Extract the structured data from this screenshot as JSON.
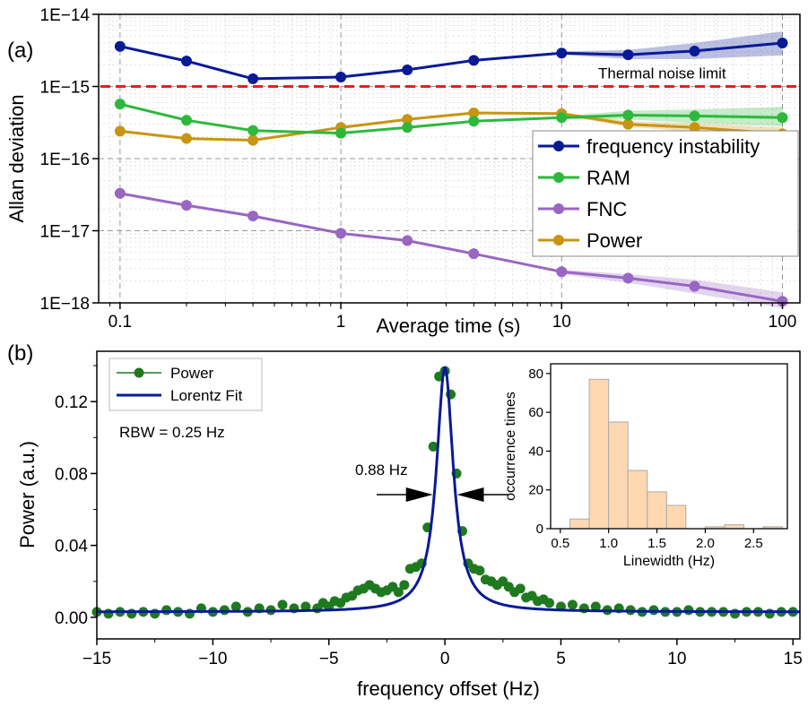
{
  "chart_data": [
    {
      "type": "line",
      "panel_label": "(a)",
      "xlabel": "Average time (s)",
      "ylabel": "Allan deviation",
      "xscale": "log",
      "yscale": "log",
      "xlim": [
        0.08,
        120
      ],
      "ylim": [
        1e-18,
        1e-14
      ],
      "x_ticks": [
        0.1,
        1,
        10,
        100
      ],
      "x_tick_labels": [
        "0.1",
        "1",
        "10",
        "100"
      ],
      "y_ticks": [
        1e-18,
        1e-17,
        1e-16,
        1e-15,
        1e-14
      ],
      "y_tick_labels": [
        "1E−18",
        "1E−17",
        "1E−16",
        "1E−15",
        "1E−14"
      ],
      "grid": true,
      "legend_position": "right",
      "x": [
        0.1,
        0.2,
        0.4,
        1,
        2,
        4,
        10,
        20,
        40,
        100
      ],
      "series": [
        {
          "name": "frequency instability",
          "color": "#0a1a96",
          "values": [
            3.6e-15,
            2.25e-15,
            1.28e-15,
            1.35e-15,
            1.7e-15,
            2.3e-15,
            2.9e-15,
            2.75e-15,
            3.1e-15,
            4e-15
          ],
          "band_upper": [
            null,
            null,
            null,
            null,
            null,
            null,
            3.05e-15,
            3.2e-15,
            4e-15,
            5.8e-15
          ],
          "band_lower": [
            null,
            null,
            null,
            null,
            null,
            null,
            2.75e-15,
            2.4e-15,
            2.4e-15,
            2.7e-15
          ]
        },
        {
          "name": "RAM",
          "color": "#2db83d",
          "values": [
            5.7e-16,
            3.4e-16,
            2.45e-16,
            2.25e-16,
            2.7e-16,
            3.3e-16,
            3.7e-16,
            4e-16,
            3.9e-16,
            3.7e-16
          ],
          "band_upper": [
            null,
            null,
            null,
            null,
            null,
            null,
            3.9e-16,
            4.6e-16,
            4.8e-16,
            5.2e-16
          ],
          "band_lower": [
            null,
            null,
            null,
            null,
            null,
            null,
            3.5e-16,
            3.5e-16,
            3.1e-16,
            2.8e-16
          ]
        },
        {
          "name": "FNC",
          "color": "#9966c2",
          "values": [
            3.3e-17,
            2.25e-17,
            1.6e-17,
            9.2e-18,
            7.3e-18,
            4.8e-18,
            2.7e-18,
            2.2e-18,
            1.7e-18,
            1.05e-18
          ],
          "band_upper": [
            null,
            null,
            null,
            null,
            null,
            null,
            2.9e-18,
            2.5e-18,
            2.1e-18,
            1.4e-18
          ],
          "band_lower": [
            null,
            null,
            null,
            null,
            null,
            null,
            2.5e-18,
            1.9e-18,
            1.35e-18,
            8.5e-19
          ]
        },
        {
          "name": "Power",
          "color": "#c89512",
          "values": [
            2.4e-16,
            1.9e-16,
            1.8e-16,
            2.7e-16,
            3.5e-16,
            4.3e-16,
            4.2e-16,
            3e-16,
            2.7e-16,
            2.2e-16
          ],
          "band_upper": [
            null,
            null,
            null,
            null,
            null,
            null,
            4.4e-16,
            3.3e-16,
            3.1e-16,
            2.7e-16
          ],
          "band_lower": [
            null,
            null,
            null,
            null,
            null,
            null,
            4e-16,
            2.75e-16,
            2.35e-16,
            1.85e-16
          ]
        }
      ],
      "reference_line": {
        "label": "Thermal noise limit",
        "value": 1e-15,
        "color": "#e8201c"
      }
    },
    {
      "type": "scatter",
      "panel_label": "(b)",
      "xlabel": "frequency offset (Hz)",
      "ylabel": "Power (a.u.)",
      "xlim": [
        -15,
        15.3
      ],
      "ylim": [
        -0.012,
        0.148
      ],
      "x_ticks": [
        -15,
        -10,
        -5,
        0,
        5,
        10,
        15
      ],
      "x_tick_labels": [
        "−15",
        "−10",
        "−5",
        "0",
        "5",
        "10",
        "15"
      ],
      "y_ticks": [
        0.0,
        0.04,
        0.08,
        0.12
      ],
      "y_tick_labels": [
        "0.00",
        "0.04",
        "0.08",
        "0.12"
      ],
      "annotations": [
        "RBW  = 0.25 Hz",
        "0.88 Hz"
      ],
      "series": [
        {
          "name": "Power",
          "color": "#1f7a1f",
          "marker": "circle",
          "x": [
            -1.0,
            -0.75,
            -0.5,
            -0.25,
            0.0,
            0.25,
            0.5,
            0.75,
            1.0,
            1.25,
            1.5,
            1.75,
            2.0,
            -1.25,
            -1.5,
            -1.75,
            -2.0,
            -2.25,
            -2.5,
            -2.75,
            -3.0,
            -3.25,
            -3.5,
            -3.75,
            -4.0,
            -4.25,
            -4.5,
            -4.75,
            -5.0,
            -5.25,
            -5.5,
            -6.0,
            -6.5,
            -7.0,
            -7.5,
            -8.0,
            -8.5,
            -9.0,
            -9.5,
            -10.0,
            -10.5,
            -11.0,
            -11.5,
            -12.0,
            -12.5,
            -13.0,
            -13.5,
            -14.0,
            -14.5,
            -15.0,
            2.25,
            2.5,
            2.75,
            3.0,
            3.25,
            3.5,
            3.75,
            4.0,
            4.25,
            4.5,
            5.0,
            5.5,
            6.0,
            6.5,
            7.0,
            7.5,
            8.0,
            8.5,
            9.0,
            9.5,
            10.0,
            10.5,
            11.0,
            11.5,
            12.0,
            12.5,
            13.0,
            13.5,
            14.0,
            14.5,
            15.0
          ],
          "values": [
            0.03,
            0.05,
            0.095,
            0.134,
            0.137,
            0.124,
            0.08,
            0.048,
            0.03,
            0.027,
            0.026,
            0.021,
            0.02,
            0.028,
            0.027,
            0.018,
            0.014,
            0.017,
            0.015,
            0.014,
            0.016,
            0.018,
            0.016,
            0.015,
            0.012,
            0.011,
            0.008,
            0.009,
            0.006,
            0.008,
            0.005,
            0.006,
            0.005,
            0.007,
            0.004,
            0.005,
            0.003,
            0.006,
            0.004,
            0.003,
            0.005,
            0.002,
            0.003,
            0.004,
            0.002,
            0.003,
            0.002,
            0.003,
            0.002,
            0.003,
            0.018,
            0.02,
            0.017,
            0.014,
            0.016,
            0.011,
            0.012,
            0.009,
            0.01,
            0.008,
            0.006,
            0.007,
            0.005,
            0.006,
            0.004,
            0.005,
            0.004,
            0.003,
            0.004,
            0.003,
            0.003,
            0.004,
            0.003,
            0.003,
            0.003,
            0.002,
            0.003,
            0.003,
            0.002,
            0.003,
            0.003
          ]
        },
        {
          "name": "Lorentz Fit",
          "color": "#0a1a96",
          "peak": 0.139,
          "center": 0.0,
          "fwhm": 0.88,
          "offset": 0.003
        }
      ],
      "inset": {
        "type": "bar",
        "xlabel": "Linewidth (Hz)",
        "ylabel": "occurrence times",
        "bar_color": "#fdd8b0",
        "bar_edge": "#aaaaaa",
        "bin_width": 0.2,
        "bin_left_edges": [
          0.6,
          0.8,
          1.0,
          1.2,
          1.4,
          1.6,
          1.8,
          2.0,
          2.2,
          2.4,
          2.6
        ],
        "values": [
          5,
          77,
          55,
          30,
          19,
          12,
          0,
          1,
          2,
          0,
          1
        ],
        "xlim": [
          0.4,
          2.85
        ],
        "ylim": [
          0,
          85
        ],
        "x_ticks": [
          0.5,
          1.0,
          1.5,
          2.0,
          2.5
        ],
        "x_tick_labels": [
          "0.5",
          "1.0",
          "1.5",
          "2.0",
          "2.5"
        ],
        "y_ticks": [
          0,
          20,
          40,
          60,
          80
        ],
        "y_tick_labels": [
          "0",
          "20",
          "40",
          "60",
          "80"
        ]
      }
    }
  ]
}
